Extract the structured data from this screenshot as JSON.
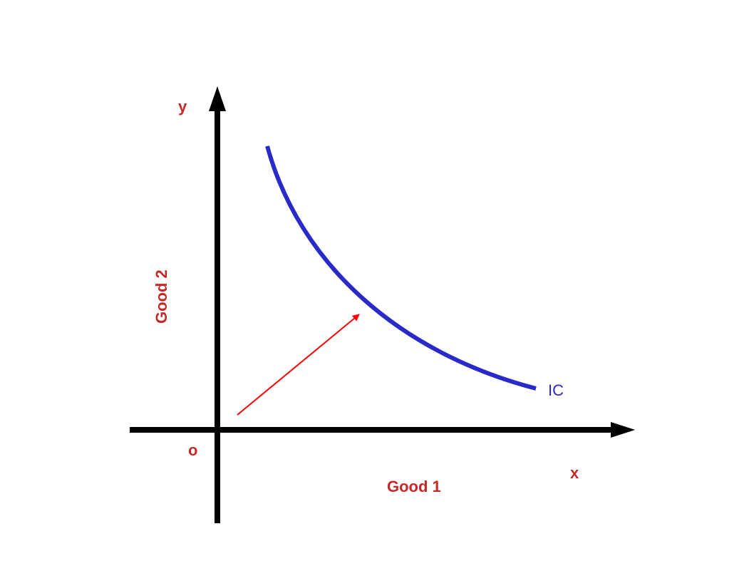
{
  "labels": {
    "y_axis": "y",
    "x_axis": "x",
    "origin": "o",
    "y_title": "Good 2",
    "x_title": "Good 1",
    "curve": "IC"
  },
  "colors": {
    "axes": "#000000",
    "curve": "#2a2ac8",
    "arrow": "#ff0000",
    "labels": "#c62828"
  }
}
